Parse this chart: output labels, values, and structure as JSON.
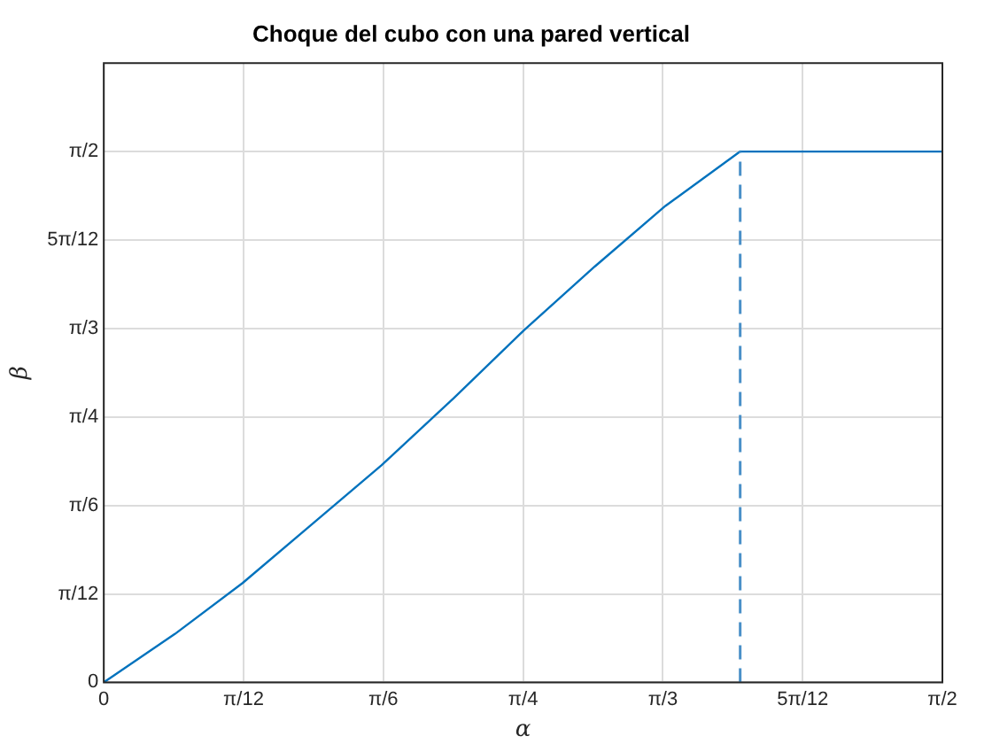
{
  "chart_data": {
    "type": "line",
    "title": "Choque del cubo con una pared vertical",
    "xlabel": "α",
    "ylabel": "β",
    "x": [
      0,
      0.133,
      0.26,
      0.387,
      0.52,
      0.654,
      0.787,
      0.92,
      1.052,
      1.192,
      1.5708
    ],
    "series": [
      {
        "color": "#0072bd",
        "values": [
          0,
          0.143,
          0.294,
          0.464,
          0.642,
          0.839,
          1.042,
          1.231,
          1.41,
          1.5708,
          1.5708
        ]
      }
    ],
    "xlim": [
      0,
      1.5708
    ],
    "ylim": [
      0,
      1.8326
    ],
    "xticks": [
      0,
      {
        "value": 0.2618,
        "label": "π/12"
      },
      {
        "value": 0.5236,
        "label": "π/6"
      },
      {
        "value": 0.7854,
        "label": "π/4"
      },
      {
        "value": 1.0472,
        "label": "π/3"
      },
      {
        "value": 1.309,
        "label": "5π/12"
      },
      {
        "value": 1.5708,
        "label": "π/2"
      }
    ],
    "yticks": [
      0,
      {
        "value": 0.2618,
        "label": "π/12"
      },
      {
        "value": 0.5236,
        "label": "π/6"
      },
      {
        "value": 0.7854,
        "label": "π/4"
      },
      {
        "value": 1.0472,
        "label": "π/3"
      },
      {
        "value": 1.309,
        "label": "5π/12"
      },
      {
        "value": 1.5708,
        "label": "π/2"
      }
    ],
    "ref_lines": [
      {
        "axis": "x",
        "value": 1.192,
        "color": "#4a90c8",
        "line_style": "dashed"
      }
    ],
    "grid": true,
    "legend": false,
    "marker": "none",
    "line_style": "solid"
  }
}
